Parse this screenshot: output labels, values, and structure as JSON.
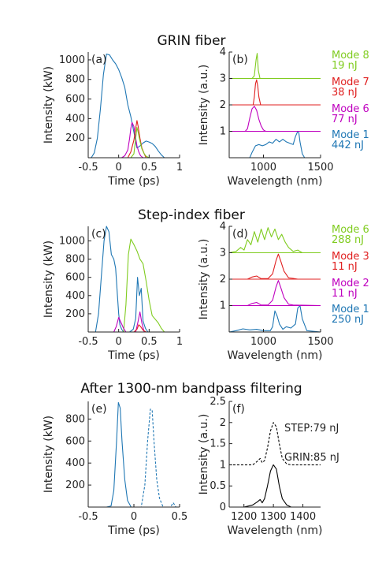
{
  "sections": [
    {
      "title": "GRIN fiber"
    },
    {
      "title": "Step-index fiber"
    },
    {
      "title": "After 1300-nm bandpass filtering"
    }
  ],
  "chart_data": [
    {
      "id": "a",
      "type": "line",
      "panel_label": "(a)",
      "xlabel": "Time (ps)",
      "ylabel": "Intensity (kW)",
      "xlim": [
        -0.5,
        1
      ],
      "ylim": [
        0,
        1080
      ],
      "xticks": [
        -0.5,
        0,
        0.5,
        1
      ],
      "yticks": [
        200,
        400,
        600,
        800,
        1000
      ],
      "series": [
        {
          "color": "#1f77b4",
          "x": [
            -0.45,
            -0.4,
            -0.35,
            -0.3,
            -0.25,
            -0.2,
            -0.15,
            -0.1,
            -0.05,
            0,
            0.05,
            0.1,
            0.15,
            0.2,
            0.25,
            0.3,
            0.35,
            0.4,
            0.45,
            0.5,
            0.55,
            0.6,
            0.65,
            0.7,
            0.75
          ],
          "y": [
            0,
            50,
            200,
            500,
            850,
            1060,
            1050,
            1000,
            960,
            900,
            820,
            720,
            540,
            420,
            260,
            100,
            120,
            150,
            170,
            160,
            145,
            115,
            70,
            30,
            0
          ]
        },
        {
          "color": "#bf00bf",
          "x": [
            0.05,
            0.1,
            0.15,
            0.18,
            0.2,
            0.22,
            0.25,
            0.28,
            0.3,
            0.33,
            0.36,
            0.4
          ],
          "y": [
            0,
            20,
            80,
            200,
            300,
            360,
            320,
            200,
            120,
            60,
            20,
            0
          ]
        },
        {
          "color": "#e02020",
          "x": [
            0.15,
            0.2,
            0.25,
            0.28,
            0.3,
            0.32,
            0.35,
            0.38,
            0.42,
            0.45
          ],
          "y": [
            0,
            60,
            180,
            300,
            380,
            320,
            200,
            100,
            40,
            0
          ]
        },
        {
          "color": "#80cc20",
          "x": [
            0.2,
            0.25,
            0.28,
            0.3,
            0.32,
            0.35,
            0.38,
            0.42,
            0.45,
            0.5
          ],
          "y": [
            0,
            40,
            200,
            310,
            260,
            170,
            90,
            40,
            15,
            0
          ]
        }
      ]
    },
    {
      "id": "b",
      "type": "line",
      "panel_label": "(b)",
      "xlabel": "Wavelength (nm)",
      "ylabel": "Intensity (a.u.)",
      "xlim": [
        700,
        1500
      ],
      "ylim": [
        0,
        4
      ],
      "xticks": [
        1000,
        1500
      ],
      "yticks": [
        1,
        2,
        3,
        4
      ],
      "series": [
        {
          "name": "Mode 8",
          "energy": "19 nJ",
          "color": "#80cc20",
          "x": [
            700,
            900,
            920,
            935,
            945,
            955,
            970,
            1500
          ],
          "y": [
            3,
            3,
            3.1,
            3.7,
            3.95,
            3.3,
            3,
            3
          ]
        },
        {
          "name": "Mode 7",
          "energy": "38 nJ",
          "color": "#e02020",
          "x": [
            700,
            910,
            920,
            930,
            940,
            950,
            960,
            975,
            1500
          ],
          "y": [
            2,
            2,
            2.3,
            2.8,
            2.95,
            2.7,
            2.3,
            2,
            2
          ]
        },
        {
          "name": "Mode 6",
          "energy": "77 nJ",
          "color": "#bf00bf",
          "x": [
            700,
            840,
            860,
            880,
            900,
            920,
            940,
            960,
            980,
            1000,
            1020,
            1500
          ],
          "y": [
            1,
            1,
            1.1,
            1.5,
            1.85,
            1.95,
            1.8,
            1.45,
            1.2,
            1.05,
            1,
            1
          ]
        },
        {
          "name": "Mode 1",
          "energy": "442 nJ",
          "color": "#1f77b4",
          "x": [
            700,
            880,
            900,
            930,
            960,
            990,
            1020,
            1050,
            1080,
            1110,
            1140,
            1170,
            1200,
            1230,
            1260,
            1280,
            1300,
            1310,
            1320,
            1340,
            1360,
            1500
          ],
          "y": [
            0,
            0,
            0.2,
            0.45,
            0.5,
            0.45,
            0.5,
            0.6,
            0.55,
            0.7,
            0.6,
            0.7,
            0.6,
            0.55,
            0.5,
            0.8,
            1.0,
            0.95,
            0.6,
            0.15,
            0,
            0
          ]
        }
      ]
    },
    {
      "id": "c",
      "type": "line",
      "panel_label": "(c)",
      "xlabel": "Time (ps)",
      "ylabel": "Intensity (kW)",
      "xlim": [
        -0.5,
        1
      ],
      "ylim": [
        0,
        1160
      ],
      "xticks": [
        -0.5,
        0,
        0.5,
        1
      ],
      "yticks": [
        200,
        400,
        600,
        800,
        1000
      ],
      "series": [
        {
          "color": "#1f77b4",
          "x": [
            -0.38,
            -0.33,
            -0.28,
            -0.24,
            -0.2,
            -0.16,
            -0.12,
            -0.08,
            -0.05,
            -0.02,
            0,
            0.02,
            0.05,
            0.08,
            0.12,
            0.18,
            0.24,
            0.28,
            0.31,
            0.34,
            0.37,
            0.4,
            0.44,
            0.48
          ],
          "y": [
            0,
            200,
            650,
            1000,
            1160,
            1100,
            850,
            800,
            700,
            400,
            200,
            80,
            30,
            0,
            0,
            0,
            30,
            150,
            600,
            400,
            480,
            120,
            40,
            0
          ]
        },
        {
          "color": "#80cc20",
          "x": [
            0.08,
            0.12,
            0.16,
            0.2,
            0.25,
            0.3,
            0.35,
            0.4,
            0.45,
            0.5,
            0.55,
            0.6,
            0.65,
            0.7,
            0.75
          ],
          "y": [
            0,
            300,
            850,
            1020,
            960,
            890,
            800,
            750,
            560,
            350,
            180,
            140,
            100,
            40,
            0
          ]
        },
        {
          "color": "#bf00bf",
          "x": [
            -0.08,
            -0.04,
            0,
            0.04,
            0.08,
            0.12,
            0.2,
            0.28,
            0.32,
            0.35,
            0.38,
            0.42
          ],
          "y": [
            0,
            60,
            160,
            100,
            40,
            0,
            0,
            0,
            120,
            220,
            100,
            0
          ]
        },
        {
          "color": "#e02020",
          "x": [
            0.25,
            0.3,
            0.33,
            0.36,
            0.4,
            0.45
          ],
          "y": [
            0,
            30,
            80,
            60,
            20,
            0
          ]
        }
      ]
    },
    {
      "id": "d",
      "type": "line",
      "panel_label": "(d)",
      "xlabel": "Wavelength (nm)",
      "ylabel": "Intensity (a.u.)",
      "xlim": [
        700,
        1500
      ],
      "ylim": [
        0,
        4
      ],
      "xticks": [
        1000,
        1500
      ],
      "yticks": [
        1,
        2,
        3,
        4
      ],
      "series": [
        {
          "name": "Mode 6",
          "energy": "288 nJ",
          "color": "#80cc20",
          "x": [
            700,
            760,
            800,
            830,
            860,
            890,
            920,
            950,
            980,
            1010,
            1040,
            1070,
            1100,
            1130,
            1160,
            1190,
            1220,
            1260,
            1300,
            1340,
            1500
          ],
          "y": [
            3,
            3.05,
            3.2,
            3.1,
            3.5,
            3.3,
            3.8,
            3.4,
            3.9,
            3.5,
            3.95,
            3.6,
            3.9,
            3.5,
            3.7,
            3.4,
            3.2,
            3.05,
            3.1,
            3,
            3
          ]
        },
        {
          "name": "Mode 3",
          "energy": "11 nJ",
          "color": "#e02020",
          "x": [
            700,
            860,
            900,
            940,
            980,
            1040,
            1080,
            1110,
            1130,
            1150,
            1180,
            1220,
            1260,
            1300,
            1500
          ],
          "y": [
            2,
            2,
            2.08,
            2.12,
            2.02,
            2.02,
            2.2,
            2.7,
            2.95,
            2.7,
            2.3,
            2.05,
            2.03,
            2,
            2
          ]
        },
        {
          "name": "Mode 2",
          "energy": "11 nJ",
          "color": "#bf00bf",
          "x": [
            700,
            860,
            900,
            940,
            980,
            1040,
            1080,
            1110,
            1130,
            1150,
            1180,
            1220,
            1260,
            1500
          ],
          "y": [
            1,
            1,
            1.08,
            1.12,
            1.02,
            1.02,
            1.2,
            1.7,
            1.95,
            1.7,
            1.3,
            1.05,
            1.02,
            1
          ]
        },
        {
          "name": "Mode 1",
          "energy": "250 nJ",
          "color": "#1f77b4",
          "x": [
            700,
            760,
            820,
            880,
            940,
            1000,
            1060,
            1080,
            1100,
            1120,
            1140,
            1170,
            1200,
            1240,
            1280,
            1300,
            1320,
            1340,
            1380,
            1500
          ],
          "y": [
            0,
            0.05,
            0.12,
            0.08,
            0.1,
            0.05,
            0.05,
            0.2,
            0.8,
            0.6,
            0.3,
            0.1,
            0.2,
            0.15,
            0.3,
            0.9,
            1.0,
            0.5,
            0.05,
            0
          ]
        }
      ]
    },
    {
      "id": "e",
      "type": "line",
      "panel_label": "(e)",
      "xlabel": "Time (ps)",
      "ylabel": "Intensity (kW)",
      "xlim": [
        -0.5,
        0.5
      ],
      "ylim": [
        0,
        960
      ],
      "xticks": [
        -0.5,
        0,
        0.5
      ],
      "yticks": [
        200,
        400,
        600,
        800
      ],
      "series": [
        {
          "color": "#1f77b4",
          "dashed": false,
          "x": [
            -0.5,
            -0.3,
            -0.25,
            -0.22,
            -0.19,
            -0.17,
            -0.15,
            -0.13,
            -0.1,
            -0.07,
            -0.03,
            0.5
          ],
          "y": [
            0,
            0,
            10,
            150,
            600,
            950,
            900,
            600,
            250,
            60,
            0,
            0
          ]
        },
        {
          "color": "#1f77b4",
          "dashed": true,
          "x": [
            -0.5,
            0.08,
            0.12,
            0.15,
            0.18,
            0.2,
            0.22,
            0.25,
            0.28,
            0.32,
            0.4,
            0.43,
            0.46,
            0.5
          ],
          "y": [
            0,
            0,
            200,
            600,
            890,
            880,
            600,
            250,
            80,
            0,
            0,
            40,
            0,
            0
          ]
        }
      ]
    },
    {
      "id": "f",
      "type": "line",
      "panel_label": "(f)",
      "xlabel": "Wavelength (nm)",
      "ylabel": "Intensity (a.u.)",
      "xlim": [
        1150,
        1460
      ],
      "ylim": [
        0,
        2.5
      ],
      "xticks": [
        1200,
        1300,
        1400
      ],
      "yticks": [
        0,
        0.5,
        1,
        1.5,
        2,
        2.5
      ],
      "series": [
        {
          "name": "STEP:79 nJ",
          "color": "#000000",
          "dashed": true,
          "x": [
            1150,
            1230,
            1245,
            1255,
            1262,
            1270,
            1280,
            1290,
            1300,
            1310,
            1320,
            1330,
            1345,
            1360,
            1460
          ],
          "y": [
            1,
            1,
            1.08,
            1.15,
            1.05,
            1.1,
            1.4,
            1.8,
            2.0,
            1.9,
            1.5,
            1.15,
            1.02,
            1,
            1
          ]
        },
        {
          "name": "GRIN:85 nJ",
          "color": "#000000",
          "dashed": false,
          "x": [
            1150,
            1200,
            1230,
            1245,
            1255,
            1262,
            1270,
            1280,
            1290,
            1300,
            1310,
            1320,
            1330,
            1345,
            1360,
            1460
          ],
          "y": [
            0,
            0,
            0.05,
            0.12,
            0.18,
            0.1,
            0.2,
            0.5,
            0.85,
            1.0,
            0.9,
            0.5,
            0.2,
            0.05,
            0,
            0
          ]
        }
      ]
    }
  ]
}
